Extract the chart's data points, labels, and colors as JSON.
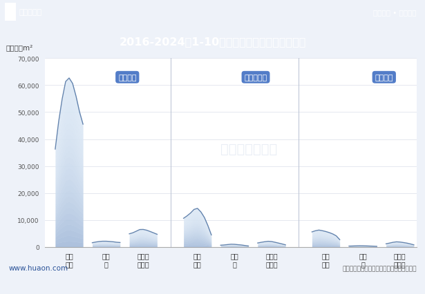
{
  "title": "2016-2024年1-10月河南省房地产施工面积情况",
  "unit_label": "单位：万m²",
  "header_left": "华经情报网",
  "header_right": "专业严谨 • 客观科学",
  "footer_left": "www.huaon.com",
  "footer_right": "数据来源：国家统计局；华经产业研究院整理",
  "watermark": "华经产业研究院",
  "ylim": [
    0,
    70000
  ],
  "yticks": [
    0,
    10000,
    20000,
    30000,
    40000,
    50000,
    60000,
    70000
  ],
  "header_bg": "#2a5298",
  "title_bg": "#3060b0",
  "annotation_bg": "#4472c4",
  "annotation_text_color": "#ffffff",
  "groups": [
    {
      "label": "施工面积",
      "annotation": "施工面积",
      "series": {
        "商品住宅": [
          35000,
          47000,
          55000,
          62000,
          63000,
          61000,
          56000,
          50000,
          45000
        ],
        "办公楼": [
          1500,
          1800,
          2000,
          2100,
          2100,
          2000,
          1900,
          1700,
          1600
        ],
        "商业营业用房": [
          4800,
          5200,
          5800,
          6500,
          6500,
          6200,
          5700,
          5200,
          4600
        ]
      }
    },
    {
      "label": "新开工面积",
      "annotation": "新开工面积",
      "series": {
        "商品住宅": [
          10500,
          11500,
          12500,
          14000,
          14500,
          13000,
          11000,
          8000,
          4000
        ],
        "办公楼": [
          600,
          700,
          850,
          1000,
          950,
          800,
          700,
          500,
          300
        ],
        "商业营业用房": [
          1400,
          1700,
          1900,
          2100,
          2000,
          1700,
          1400,
          1100,
          700
        ]
      }
    },
    {
      "label": "竣工面积",
      "annotation": "竣工面积",
      "series": {
        "商品住宅": [
          5500,
          6000,
          6300,
          6000,
          5700,
          5300,
          4800,
          4200,
          2500
        ],
        "办公楼": [
          280,
          320,
          380,
          420,
          400,
          360,
          300,
          260,
          180
        ],
        "商业营业用房": [
          1100,
          1400,
          1700,
          1900,
          1800,
          1600,
          1400,
          1100,
          700
        ]
      }
    }
  ],
  "line_color": "#4a6fa0",
  "fill_color_light": "#dce8f5",
  "fill_color_dark": "#7090c0",
  "bg_color": "#eef2f9",
  "plot_bg": "#ffffff",
  "grid_color": "#e0e4ec",
  "sep_color": "#c0c8d8",
  "xlabel_color": "#333333",
  "ytick_color": "#555555",
  "footer_left_color": "#2a5298",
  "footer_right_color": "#666666"
}
